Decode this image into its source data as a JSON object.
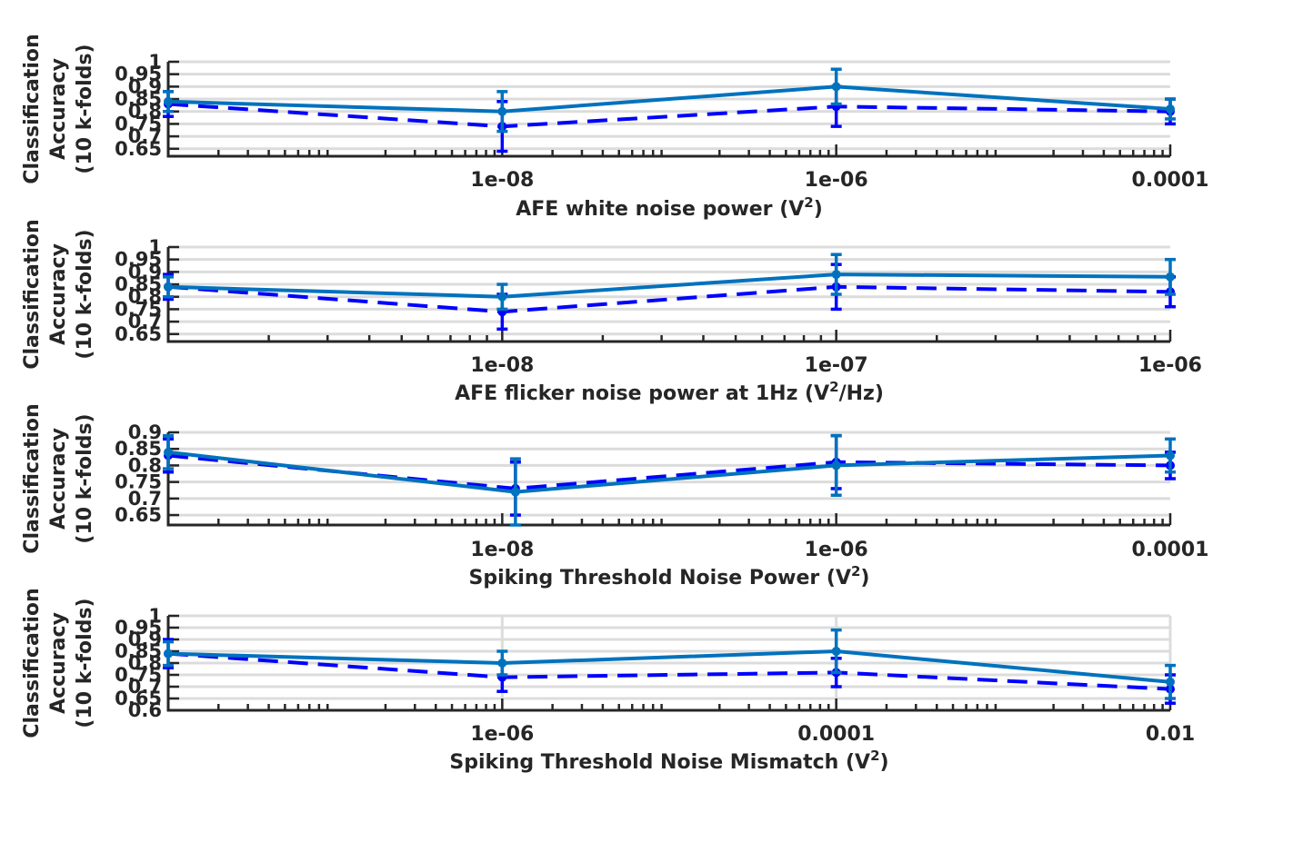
{
  "figure": {
    "ylabel_line1": "Classification",
    "ylabel_line2": "Accuracy",
    "ylabel_line3": "(10 k-folds)"
  },
  "colors": {
    "solid": "#0072BD",
    "dashed": "#0000FF",
    "axis": "#262626",
    "grid": "#DCDCDC"
  },
  "chart_data": [
    {
      "type": "line",
      "xscale": "log",
      "xlim": [
        1e-10,
        0.0001
      ],
      "ylim": [
        0.62,
        1.0
      ],
      "xticks": [
        1e-08,
        1e-06,
        0.0001
      ],
      "xtick_labels": [
        "1e-08",
        "1e-06",
        "0.0001"
      ],
      "yticks": [
        0.65,
        0.7,
        0.75,
        0.8,
        0.85,
        0.9,
        0.95,
        1
      ],
      "ytick_labels": [
        "0.65",
        "0.7",
        "0.75",
        "0.8",
        "0.85",
        "0.9",
        "0.95",
        "1"
      ],
      "grid": "y",
      "xlabel": "AFE white noise power (V",
      "xlabel_sup": "2",
      "xlabel_tail": ")",
      "series": [
        {
          "style": "solid",
          "x": [
            1e-10,
            1e-08,
            1e-06,
            0.0001
          ],
          "y": [
            0.84,
            0.8,
            0.9,
            0.81
          ],
          "err": [
            0.04,
            0.08,
            0.07,
            0.04
          ]
        },
        {
          "style": "dashed",
          "x": [
            1e-10,
            1e-08,
            1e-06,
            0.0001
          ],
          "y": [
            0.83,
            0.74,
            0.82,
            0.8
          ],
          "err": [
            0.05,
            0.1,
            0.08,
            0.05
          ]
        }
      ]
    },
    {
      "type": "line",
      "xscale": "log",
      "xlim": [
        1e-09,
        1e-06
      ],
      "ylim": [
        0.62,
        1.0
      ],
      "xticks": [
        1e-08,
        1e-07,
        1e-06
      ],
      "xtick_labels": [
        "1e-08",
        "1e-07",
        "1e-06"
      ],
      "yticks": [
        0.65,
        0.7,
        0.75,
        0.8,
        0.85,
        0.9,
        0.95,
        1
      ],
      "ytick_labels": [
        "0.65",
        "0.7",
        "0.75",
        "0.8",
        "0.85",
        "0.9",
        "0.95",
        "1"
      ],
      "grid": "y",
      "xlabel": "AFE flicker noise power at 1Hz (V",
      "xlabel_sup": "2",
      "xlabel_tail": "/Hz)",
      "series": [
        {
          "style": "solid",
          "x": [
            1e-09,
            1e-08,
            1e-07,
            1e-06
          ],
          "y": [
            0.84,
            0.8,
            0.89,
            0.88
          ],
          "err": [
            0.04,
            0.05,
            0.08,
            0.07
          ]
        },
        {
          "style": "dashed",
          "x": [
            1e-09,
            1e-08,
            1e-07,
            1e-06
          ],
          "y": [
            0.84,
            0.74,
            0.84,
            0.82
          ],
          "err": [
            0.05,
            0.07,
            0.09,
            0.06
          ]
        }
      ]
    },
    {
      "type": "line",
      "xscale": "log",
      "xlim": [
        1e-10,
        0.0001
      ],
      "ylim": [
        0.62,
        0.9
      ],
      "xticks": [
        1e-08,
        1e-06,
        0.0001
      ],
      "xtick_labels": [
        "1e-08",
        "1e-06",
        "0.0001"
      ],
      "yticks": [
        0.65,
        0.7,
        0.75,
        0.8,
        0.85,
        0.9
      ],
      "ytick_labels": [
        "0.65",
        "0.7",
        "0.75",
        "0.8",
        "0.85",
        "0.9"
      ],
      "grid": "y",
      "xlabel": "Spiking Threshold Noise Power (V",
      "xlabel_sup": "2",
      "xlabel_tail": ")",
      "series": [
        {
          "style": "solid",
          "x": [
            1e-10,
            1.2e-08,
            1e-06,
            0.0001
          ],
          "y": [
            0.84,
            0.72,
            0.8,
            0.83
          ],
          "err": [
            0.05,
            0.1,
            0.09,
            0.05
          ]
        },
        {
          "style": "dashed",
          "x": [
            1e-10,
            1.2e-08,
            1e-06,
            0.0001
          ],
          "y": [
            0.83,
            0.73,
            0.81,
            0.8
          ],
          "err": [
            0.05,
            0.08,
            0.08,
            0.04
          ]
        }
      ]
    },
    {
      "type": "line",
      "xscale": "log",
      "xlim": [
        1e-08,
        0.01
      ],
      "ylim": [
        0.6,
        1.0
      ],
      "xticks": [
        1e-06,
        0.0001,
        0.01
      ],
      "xtick_labels": [
        "1e-06",
        "0.0001",
        "0.01"
      ],
      "yticks": [
        0.6,
        0.65,
        0.7,
        0.75,
        0.8,
        0.85,
        0.9,
        0.95,
        1
      ],
      "ytick_labels": [
        "0.6",
        "0.65",
        "0.7",
        "0.75",
        "0.8",
        "0.85",
        "0.9",
        "0.95",
        "1"
      ],
      "grid": "xy",
      "xlabel": "Spiking Threshold Noise Mismatch (V",
      "xlabel_sup": "2",
      "xlabel_tail": ")",
      "series": [
        {
          "style": "solid",
          "x": [
            1e-08,
            1e-06,
            0.0001,
            0.01
          ],
          "y": [
            0.84,
            0.8,
            0.85,
            0.72
          ],
          "err": [
            0.05,
            0.05,
            0.09,
            0.07
          ]
        },
        {
          "style": "dashed",
          "x": [
            1e-08,
            1e-06,
            0.0001,
            0.01
          ],
          "y": [
            0.84,
            0.74,
            0.76,
            0.69
          ],
          "err": [
            0.06,
            0.06,
            0.06,
            0.06
          ]
        }
      ]
    }
  ]
}
